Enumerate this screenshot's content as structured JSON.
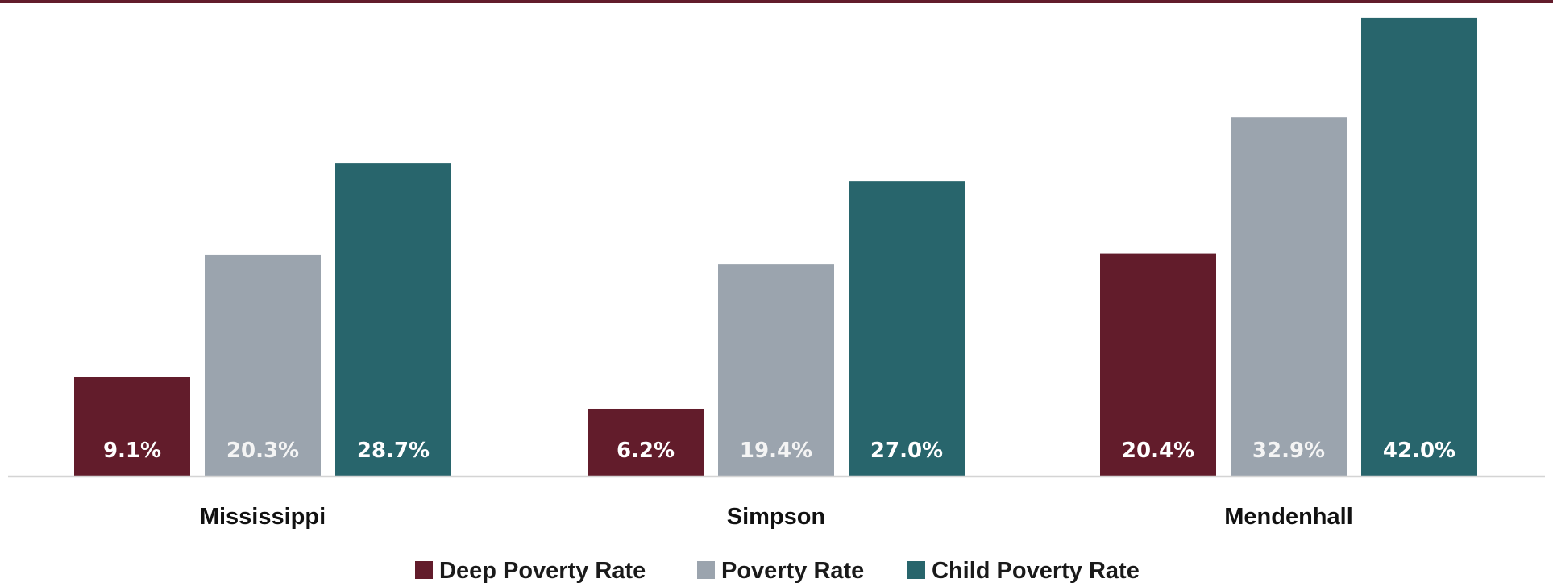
{
  "chart_data": {
    "type": "bar",
    "title": "",
    "xlabel": "",
    "ylabel": "",
    "ylim": [
      0,
      45
    ],
    "grid": false,
    "legend_position": "bottom",
    "categories": [
      "Mississippi",
      "Simpson",
      "Mendenhall"
    ],
    "series": [
      {
        "name": "Deep Poverty Rate",
        "color": "#621c2b",
        "values": [
          9.1,
          6.2,
          20.4
        ],
        "labels": [
          "9.1%",
          "6.2%",
          "20.4%"
        ]
      },
      {
        "name": "Poverty Rate",
        "color": "#9ba4ae",
        "values": [
          20.3,
          19.4,
          32.9
        ],
        "labels": [
          "20.3%",
          "19.4%",
          "32.9%"
        ]
      },
      {
        "name": "Child Poverty Rate",
        "color": "#28656c",
        "values": [
          28.7,
          27.0,
          42.0
        ],
        "labels": [
          "28.7%",
          "27.0%",
          "42.0%"
        ]
      }
    ],
    "colors": {
      "top_border": "#621c2b",
      "axis": "#d4d4d4"
    }
  }
}
